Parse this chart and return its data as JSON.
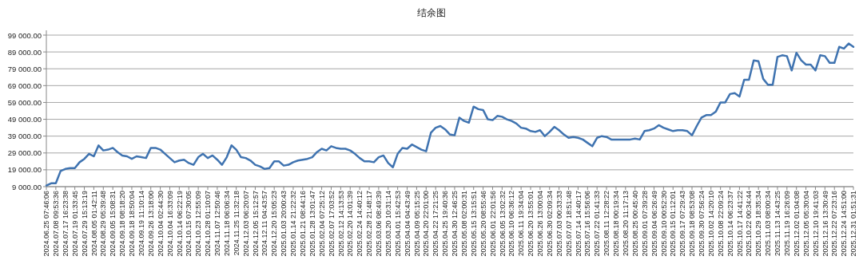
{
  "chart_data": {
    "type": "line",
    "title": "结余图",
    "categories": [
      "2024.06.25 07:46:06",
      null,
      "2024.07.08 09:53:36",
      null,
      "2024.07.17 16:23:38",
      null,
      "2024.07.19 01:33:45",
      null,
      "2024.07.29 15:13:19",
      null,
      "2024.08.05 01:42:11",
      null,
      "2024.08.29 05:39:48",
      null,
      "2024.09.05 15:08:31",
      null,
      "2024.09.18 08:18:20",
      null,
      "2024.09.18 18:50:04",
      null,
      "2024.09.19 11:10:14",
      null,
      "2024.09.26 13:18:00",
      null,
      "2024.10.04 02:44:30",
      null,
      "2024.10.04 16:33:09",
      null,
      "2024.10.14 06:22:19",
      null,
      "2024.10.15 07:30:05",
      null,
      "2024.10.23 12:55:09",
      null,
      "2024.10.28 01:10:07",
      null,
      "2024.11.07 12:50:46",
      null,
      "2024.11.18 06:06:34",
      null,
      "2024.11.25 11:32:18",
      null,
      "2024.12.03 06:20:07",
      null,
      "2024.12.05 15:12:57",
      null,
      "2024.12.11 04:43:57",
      null,
      "2024.12.20 15:05:23",
      null,
      "2025.01.03 20:00:43",
      null,
      "2025.01.14 21:22:32",
      null,
      "2025.01.21 08:44:16",
      null,
      "2025.01.28 13:01:47",
      null,
      "2025.02.04 07:25:12",
      null,
      "2025.02.07 17:03:52",
      null,
      "2025.02.12 14:13:53",
      null,
      "2025.02.20 14:01:39",
      null,
      "2025.02.24 14:40:12",
      null,
      "2025.02.28 21:48:17",
      null,
      "2025.03.06 08:49:39",
      null,
      "2025.03.20 10:31:14",
      null,
      "2025.04.01 15:42:53",
      null,
      "2025.04.04 04:43:49",
      null,
      "2025.04.09 05:15:25",
      null,
      "2025.04.20 22:01:00",
      null,
      "2025.04.22 17:21:25",
      null,
      "2025.04.25 19:40:36",
      null,
      "2025.04.30 12:46:25",
      null,
      "2025.05.08 02:00:31",
      null,
      "2025.05.15 13:15:51",
      null,
      "2025.05.20 08:55:46",
      null,
      "2025.06.01 22:01:56",
      null,
      "2025.06.05 13:02:32",
      null,
      "2025.06.10 06:36:12",
      null,
      "2025.06.11 19:34:04",
      null,
      "2025.06.20 13:55:01",
      null,
      "2025.06.26 13:00:04",
      null,
      "2025.06.30 02:09:34",
      null,
      "2025.07.03 00:33:33",
      null,
      "2025.07.07 18:51:48",
      null,
      "2025.07.14 14:40:17",
      null,
      "2025.07.16 15:56:06",
      null,
      "2025.07.22 01:41:33",
      null,
      "2025.08.11 12:28:22",
      null,
      "2025.08.18 00:19:34",
      null,
      "2025.08.20 11:17:13",
      null,
      "2025.08.25 00:45:40",
      null,
      "2025.09.01 07:39:28",
      null,
      "2025.09.04 06:26:49",
      null,
      "2025.09.10 00:52:30",
      null,
      "2025.09.15 01:12:01",
      null,
      "2025.09.17 07:29:43",
      null,
      "2025.09.18 08:53:08",
      null,
      "2025.09.30 07:56:24",
      null,
      "2025.10.02 14:20:10",
      null,
      "2025.10.08 22:09:24",
      null,
      "2025.10.14 06:23:37",
      null,
      "2025.10.17 14:41:22",
      null,
      "2025.10.22 00:34:44",
      null,
      "2025.10.29 18:35:34",
      null,
      "2025.11.03 08:00:34",
      null,
      "2025.11.13 14:43:25",
      null,
      "2025.11.19 16:26:09",
      null,
      "2025.12.02 01:04:08",
      null,
      "2025.12.05 05:30:04",
      null,
      "2025.12.10 19:41:03",
      null,
      "2025.12.16 13:30:49",
      null,
      "2025.12.22 07:23:16",
      null,
      "2025.12.24 14:51:00",
      null,
      "2025.12.31 01:51:31"
    ],
    "values": [
      9700,
      11000,
      11000,
      18300,
      19500,
      20000,
      20000,
      23500,
      25500,
      28500,
      27000,
      33500,
      30500,
      31000,
      32000,
      29500,
      27500,
      27000,
      25500,
      27000,
      26500,
      26000,
      32000,
      32000,
      31000,
      28500,
      26000,
      23500,
      24500,
      25000,
      23000,
      22000,
      26500,
      28500,
      26000,
      27500,
      25000,
      22000,
      26500,
      33500,
      31000,
      26500,
      26000,
      24500,
      22000,
      21000,
      19500,
      20000,
      24000,
      24000,
      21500,
      22000,
      23500,
      24500,
      25000,
      25500,
      26500,
      29500,
      31500,
      30500,
      33000,
      32000,
      31500,
      31500,
      30500,
      28500,
      26000,
      24000,
      24000,
      23500,
      26500,
      27500,
      23000,
      20500,
      28500,
      32000,
      31500,
      34000,
      32500,
      31000,
      30000,
      41000,
      44000,
      45000,
      43000,
      40000,
      39500,
      50000,
      48000,
      47000,
      56500,
      55000,
      54500,
      49000,
      48500,
      51000,
      50500,
      49000,
      48000,
      46500,
      44000,
      43500,
      42000,
      41500,
      42500,
      39000,
      41500,
      44500,
      42500,
      40000,
      38000,
      38500,
      38000,
      37000,
      35000,
      33000,
      38000,
      39000,
      38500,
      37000,
      37000,
      37000,
      37000,
      37000,
      37500,
      37000,
      42000,
      42500,
      43500,
      45500,
      44000,
      43000,
      42000,
      42500,
      42500,
      42000,
      39500,
      45000,
      50000,
      51500,
      51500,
      53500,
      59000,
      59000,
      64000,
      64500,
      62500,
      72500,
      72500,
      84000,
      83500,
      73000,
      69500,
      69500,
      86000,
      87000,
      86500,
      78000,
      88500,
      84000,
      81500,
      81500,
      78000,
      87000,
      86500,
      82500,
      82500,
      92000,
      91000,
      94000,
      92000
    ],
    "color": "#3f73b0",
    "ylim": [
      9000,
      99000
    ],
    "yticks": [
      {
        "value": 9000,
        "label": "9 000.00"
      },
      {
        "value": 19000,
        "label": "19 000.00"
      },
      {
        "value": 29000,
        "label": "29 000.00"
      },
      {
        "value": 39000,
        "label": "39 000.00"
      },
      {
        "value": 49000,
        "label": "49 000.00"
      },
      {
        "value": 59000,
        "label": "59 000.00"
      },
      {
        "value": 69000,
        "label": "69 000.00"
      },
      {
        "value": 79000,
        "label": "79 000.00"
      },
      {
        "value": 89000,
        "label": "89 000.00"
      },
      {
        "value": 99000,
        "label": "99 000.00"
      }
    ],
    "grid": "y"
  }
}
